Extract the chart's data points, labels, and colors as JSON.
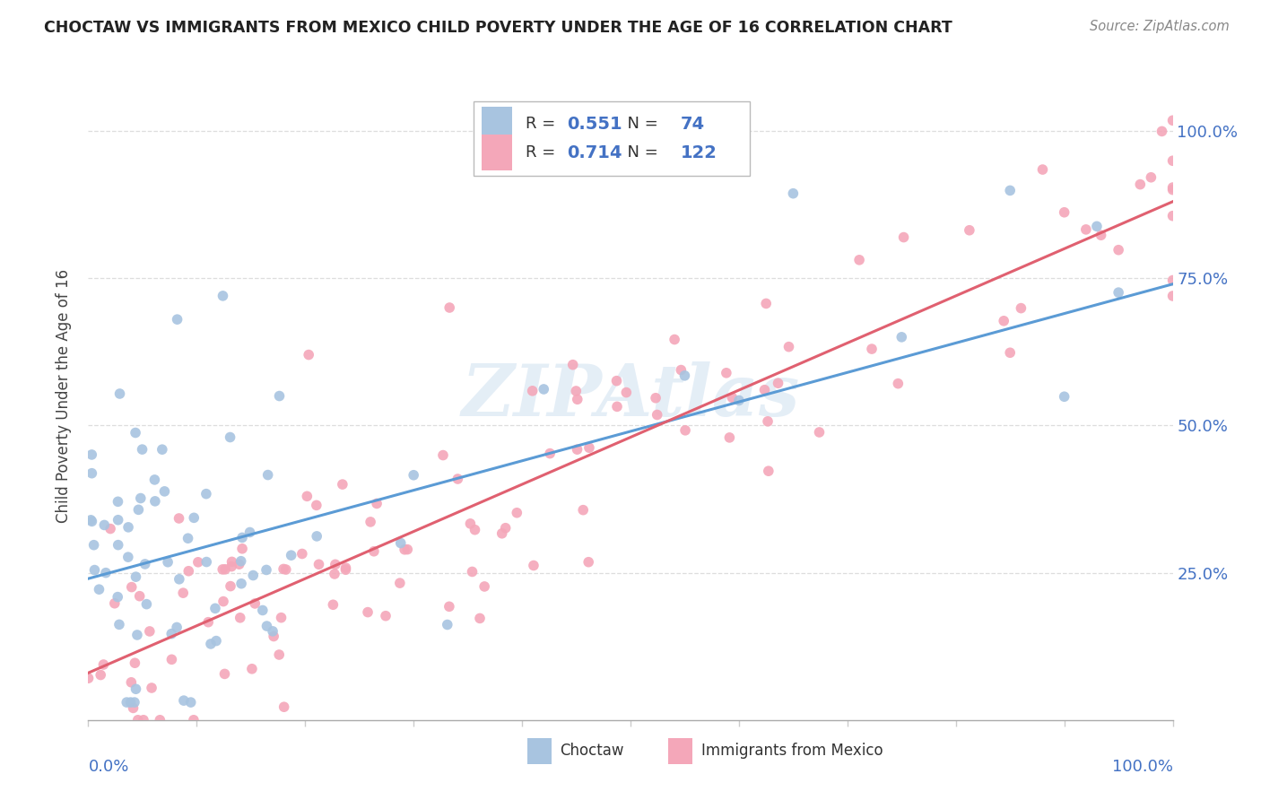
{
  "title": "CHOCTAW VS IMMIGRANTS FROM MEXICO CHILD POVERTY UNDER THE AGE OF 16 CORRELATION CHART",
  "source": "Source: ZipAtlas.com",
  "ylabel": "Child Poverty Under the Age of 16",
  "legend_label1": "Choctaw",
  "legend_label2": "Immigrants from Mexico",
  "choctaw_R": "0.551",
  "choctaw_N": 74,
  "mexico_R": "0.714",
  "mexico_N": 122,
  "choctaw_color": "#a8c4e0",
  "mexico_color": "#f4a7b9",
  "choctaw_line_color": "#5b9bd5",
  "mexico_line_color": "#e06070",
  "watermark": "ZIPAtlas",
  "background_color": "#ffffff",
  "choctaw_line_slope": 0.5,
  "choctaw_line_intercept": 0.24,
  "mexico_line_slope": 0.8,
  "mexico_line_intercept": 0.08,
  "ytick_positions": [
    0.25,
    0.5,
    0.75,
    1.0
  ],
  "ytick_labels": [
    "25.0%",
    "50.0%",
    "75.0%",
    "100.0%"
  ],
  "ymax": 1.1,
  "xmax": 1.0
}
